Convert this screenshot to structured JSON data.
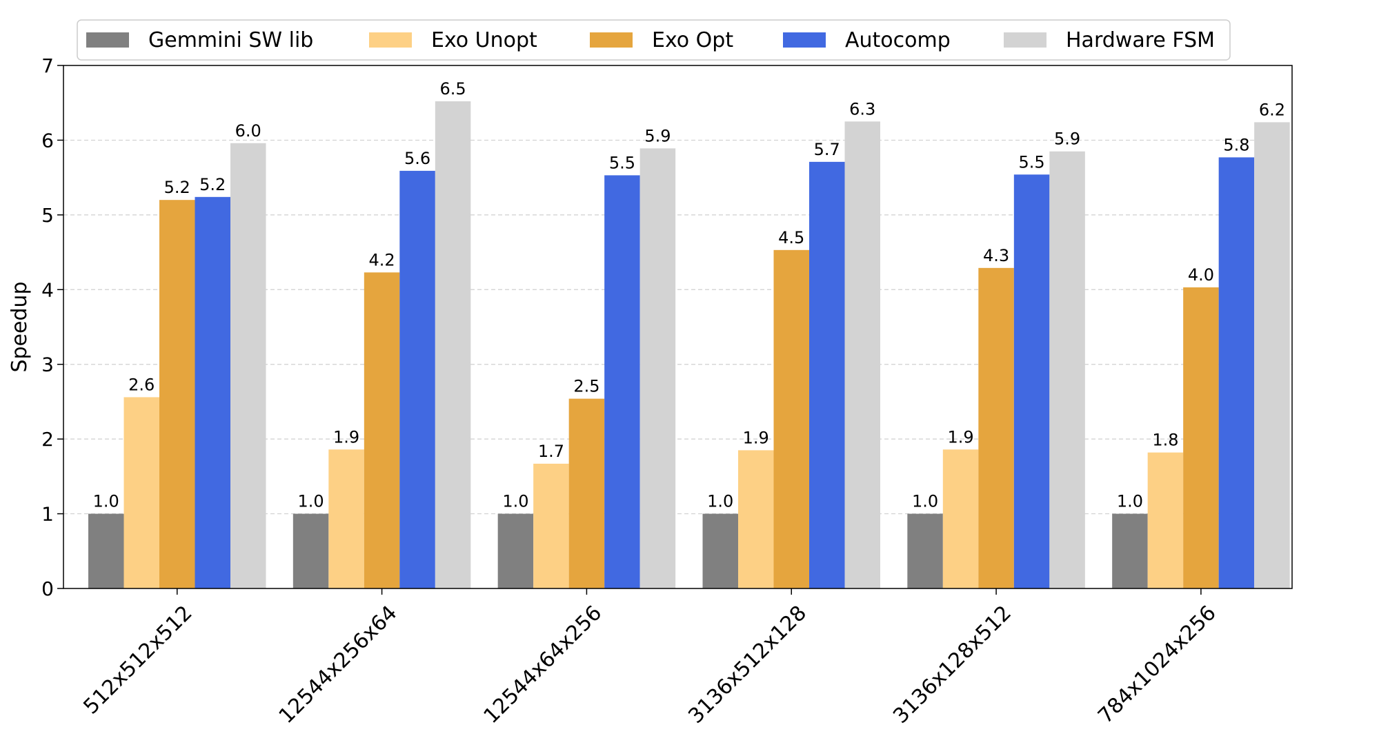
{
  "chart_data": {
    "type": "bar",
    "ylabel": "Speedup",
    "xlabel": "",
    "ylim": [
      0,
      7
    ],
    "yticks": [
      0,
      1,
      2,
      3,
      4,
      5,
      6,
      7
    ],
    "grid": "horizontal dashed",
    "legend_position": "top",
    "categories": [
      "512x512x512",
      "12544x256x64",
      "12544x64x256",
      "3136x512x128",
      "3136x128x512",
      "784x1024x256"
    ],
    "series": [
      {
        "name": "Gemmini SW lib",
        "color": "#808080",
        "values": [
          1.0,
          1.0,
          1.0,
          1.0,
          1.0,
          1.0
        ],
        "labels": [
          "1.0",
          "1.0",
          "1.0",
          "1.0",
          "1.0",
          "1.0"
        ]
      },
      {
        "name": "Exo Unopt",
        "color": "#fdd085",
        "values": [
          2.56,
          1.86,
          1.67,
          1.85,
          1.86,
          1.82
        ],
        "labels": [
          "2.6",
          "1.9",
          "1.7",
          "1.9",
          "1.9",
          "1.8"
        ]
      },
      {
        "name": "Exo Opt",
        "color": "#e5a53e",
        "values": [
          5.2,
          4.23,
          2.54,
          4.53,
          4.29,
          4.03
        ],
        "labels": [
          "5.2",
          "4.2",
          "2.5",
          "4.5",
          "4.3",
          "4.0"
        ]
      },
      {
        "name": "Autocomp",
        "color": "#4169e1",
        "values": [
          5.24,
          5.59,
          5.53,
          5.71,
          5.54,
          5.77
        ],
        "labels": [
          "5.2",
          "5.6",
          "5.5",
          "5.7",
          "5.5",
          "5.8"
        ]
      },
      {
        "name": "Hardware FSM",
        "color": "#d3d3d3",
        "values": [
          5.96,
          6.52,
          5.89,
          6.25,
          5.85,
          6.24
        ],
        "labels": [
          "6.0",
          "6.5",
          "5.9",
          "6.3",
          "5.9",
          "6.2"
        ]
      }
    ]
  }
}
